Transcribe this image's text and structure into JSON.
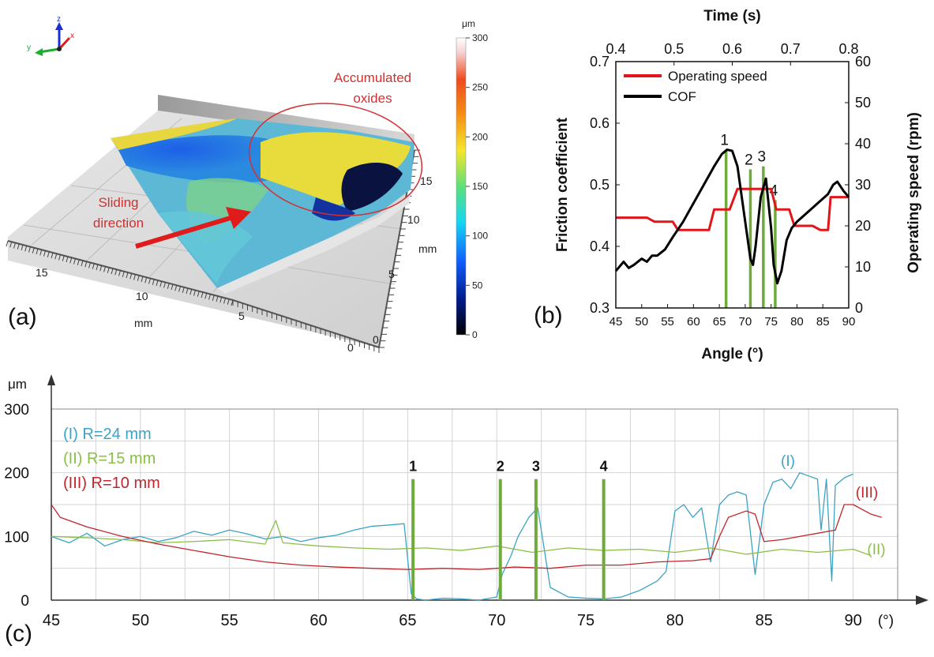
{
  "panel_a": {
    "label": "(a)",
    "unit": "μm",
    "colorbar_ticks": [
      "300",
      "250",
      "200",
      "150",
      "100",
      "50",
      "0"
    ],
    "annotation_oxides": [
      "Accumulated",
      "oxides"
    ],
    "annotation_sliding": [
      "Sliding",
      "direction"
    ],
    "axis_unit_left": "mm",
    "axis_unit_right": "mm",
    "x_ticks": [
      "15",
      "10",
      "5",
      "0"
    ],
    "y_ticks": [
      "0",
      "5",
      "10",
      "15"
    ],
    "triad": {
      "z": "z",
      "x": "x",
      "y": "y"
    },
    "colors": {
      "annotation": "#d43030",
      "arrow": "#e01b1b",
      "ellipse": "#d43030"
    }
  },
  "panel_b": {
    "label": "(b)"
  },
  "panel_c": {
    "label": "(c)"
  },
  "chart_data": [
    {
      "type": "line",
      "id": "b",
      "xlabel": "Angle (°)",
      "x2label": "Time (s)",
      "ylabel": "Friction coefficient",
      "y2label": "Operating speed  (rpm)",
      "xlim": [
        45,
        90
      ],
      "x2lim": [
        0.4,
        0.8
      ],
      "ylim": [
        0.3,
        0.7
      ],
      "y2lim": [
        0,
        60
      ],
      "x_ticks": [
        "45",
        "50",
        "55",
        "60",
        "65",
        "70",
        "75",
        "80",
        "85",
        "90"
      ],
      "x2_ticks": [
        "0.4",
        "0.5",
        "0.6",
        "0.7",
        "0.8"
      ],
      "y_ticks": [
        "0.3",
        "0.4",
        "0.5",
        "0.6",
        "0.7"
      ],
      "y2_ticks": [
        "0",
        "10",
        "20",
        "30",
        "40",
        "50",
        "60"
      ],
      "legend_position": "top-left",
      "series": [
        {
          "name": "Operating speed",
          "axis": "right",
          "color": "#e0161b",
          "x": [
            45,
            51,
            52.5,
            56,
            57,
            59.5,
            61,
            63,
            64,
            67,
            68.5,
            75,
            76,
            78.5,
            79.5,
            83,
            84.5,
            86,
            86.5,
            90
          ],
          "y": [
            22,
            22,
            21,
            21,
            19,
            19,
            19,
            19,
            24,
            24,
            29,
            29,
            24,
            24,
            20,
            20,
            19,
            19,
            27,
            27
          ]
        },
        {
          "name": "COF",
          "axis": "left",
          "color": "#000000",
          "x": [
            45,
            46.5,
            47.5,
            48.5,
            50,
            51,
            52,
            53,
            54.5,
            56,
            58,
            60,
            62,
            64,
            65.5,
            66.5,
            67.5,
            68.5,
            69.5,
            70.5,
            71,
            71.5,
            72,
            73,
            74,
            75,
            75.5,
            76.2,
            77,
            78,
            79,
            80,
            82,
            84,
            86,
            87,
            87.8,
            89,
            90
          ],
          "y": [
            0.36,
            0.375,
            0.365,
            0.37,
            0.38,
            0.375,
            0.385,
            0.385,
            0.395,
            0.415,
            0.44,
            0.47,
            0.5,
            0.53,
            0.55,
            0.557,
            0.555,
            0.53,
            0.47,
            0.41,
            0.38,
            0.37,
            0.4,
            0.48,
            0.51,
            0.43,
            0.37,
            0.34,
            0.36,
            0.41,
            0.43,
            0.44,
            0.455,
            0.47,
            0.485,
            0.5,
            0.505,
            0.49,
            0.48
          ]
        }
      ],
      "markers": [
        {
          "label": "1",
          "x": 66.3,
          "top": 0.557
        },
        {
          "label": "2",
          "x": 71,
          "top": 0.525
        },
        {
          "label": "3",
          "x": 73.5,
          "top": 0.53
        },
        {
          "label": "4",
          "x": 75.8,
          "top": 0.475
        }
      ],
      "marker_color": "#6faa3c"
    },
    {
      "type": "line",
      "id": "c",
      "yunit": "μm",
      "xunit": "(°)",
      "xlim": [
        45,
        92.5
      ],
      "ylim": [
        0,
        300
      ],
      "x_ticks": [
        "45",
        "50",
        "55",
        "60",
        "65",
        "70",
        "75",
        "80",
        "85",
        "90"
      ],
      "y_ticks": [
        "0",
        "100",
        "200",
        "300"
      ],
      "grid": true,
      "legend_position": "top-left",
      "series": [
        {
          "name": "(I) R=24 mm",
          "end_label": "(I)",
          "color": "#3ba3c7",
          "x": [
            45,
            46,
            47,
            48,
            49,
            50,
            51,
            52,
            53,
            54,
            55,
            56,
            57,
            58,
            59,
            60,
            61,
            62,
            63,
            64,
            64.8,
            65.2,
            65.5,
            66,
            67,
            68,
            69,
            70,
            70.3,
            70.8,
            71.2,
            71.8,
            72.3,
            73,
            74,
            75,
            76,
            77,
            78,
            79,
            79.5,
            80,
            80.5,
            81,
            81.5,
            82,
            82.5,
            83,
            83.5,
            84,
            84.5,
            85,
            85.5,
            86,
            86.5,
            87,
            87.5,
            88,
            88.2,
            88.5,
            88.8,
            89,
            89.5,
            90
          ],
          "y": [
            100,
            90,
            105,
            85,
            95,
            100,
            92,
            98,
            108,
            102,
            110,
            104,
            96,
            100,
            92,
            98,
            102,
            110,
            116,
            118,
            120,
            10,
            2,
            0,
            3,
            2,
            0,
            5,
            40,
            70,
            100,
            130,
            145,
            20,
            5,
            3,
            2,
            5,
            15,
            30,
            45,
            140,
            150,
            130,
            145,
            60,
            150,
            165,
            170,
            165,
            40,
            150,
            185,
            190,
            175,
            200,
            195,
            190,
            110,
            190,
            30,
            180,
            192,
            198
          ]
        },
        {
          "name": "(II) R=15 mm",
          "end_label": "(II)",
          "color": "#8bbf4a",
          "x": [
            45,
            47,
            49,
            51,
            53,
            55,
            57,
            57.6,
            58,
            60,
            62,
            64,
            66,
            68,
            70,
            72,
            74,
            76,
            78,
            80,
            82,
            84,
            86,
            88,
            90,
            91
          ],
          "y": [
            100,
            98,
            95,
            90,
            92,
            95,
            88,
            125,
            90,
            85,
            82,
            80,
            82,
            78,
            85,
            75,
            82,
            78,
            80,
            75,
            82,
            72,
            80,
            75,
            80,
            70
          ]
        },
        {
          "name": "(III) R=10 mm",
          "end_label": "(III)",
          "color": "#c0262c",
          "x": [
            45,
            45.5,
            47,
            49,
            51,
            53,
            55,
            57,
            59,
            61,
            63,
            65,
            67,
            69,
            71,
            73,
            75,
            77,
            79,
            81,
            82,
            82.5,
            83,
            84,
            84.5,
            85,
            86,
            87,
            88,
            89,
            89.5,
            90,
            91,
            91.6
          ],
          "y": [
            150,
            130,
            115,
            100,
            88,
            78,
            68,
            60,
            55,
            52,
            50,
            48,
            50,
            48,
            52,
            50,
            55,
            55,
            60,
            62,
            65,
            100,
            130,
            140,
            135,
            92,
            95,
            100,
            105,
            110,
            150,
            150,
            135,
            130
          ]
        }
      ],
      "markers": [
        {
          "label": "1",
          "x": 65.3
        },
        {
          "label": "2",
          "x": 70.2
        },
        {
          "label": "3",
          "x": 72.2
        },
        {
          "label": "4",
          "x": 76
        }
      ],
      "marker_top": 190,
      "marker_color": "#6faa3c"
    }
  ]
}
